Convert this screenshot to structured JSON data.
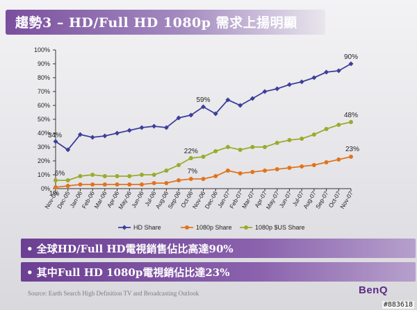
{
  "slide": {
    "title": "趨勢3 – HD/Full HD  1080p 需求上揚明顯",
    "bullets": [
      "• 全球HD/Full HD電視銷售佔比高達90%",
      "• 其中Full HD 1080p電視銷佔比達23%"
    ],
    "source": "Source: Earth Search High Definition TV and Broadcasting Outlook",
    "logo": "BenQ",
    "watermark": "#883618"
  },
  "chart_data": {
    "type": "line",
    "x": [
      "Nov-05",
      "Dec-05",
      "Jan-06",
      "Feb-06",
      "Mar-06",
      "Apr-06",
      "May-06",
      "Jun-06",
      "Jul-06",
      "Aug-06",
      "Sep-06",
      "Oct-06",
      "Nov-06",
      "Dec-06",
      "Jan-07",
      "Feb-07",
      "Mar-07",
      "Apr-07",
      "May-07",
      "Jun-07",
      "Jul-07",
      "Aug-07",
      "Sep-07",
      "Oct-07",
      "Nov-07"
    ],
    "x_tick_labels": [
      "Nov-05",
      "Dec-05",
      "Jan-06",
      "Feb-06",
      "Mar-06",
      "Apr-06",
      "May-06",
      "Jun-06",
      "Jul-06",
      "Aug-06",
      "Sep-06",
      "Oct-06",
      "Nov-06",
      "Dec-06",
      "Jan-07",
      "Feb-07",
      "Mar-07",
      "Apr-07",
      "May-07",
      "Jun-07",
      "Jul-07",
      "Aug-07",
      "Sep-07",
      "Oct-07",
      "Nov-07"
    ],
    "y_ticks": [
      "0%",
      "10%",
      "20%",
      "30%",
      "40%",
      "50%",
      "60%",
      "70%",
      "80%",
      "90%",
      "100%"
    ],
    "ylim": [
      0,
      100
    ],
    "grid": false,
    "legend_position": "bottom",
    "series": [
      {
        "name": "HD Share",
        "color": "#3c3f9a",
        "marker": "diamond",
        "values": [
          34,
          28,
          39,
          37,
          38,
          40,
          42,
          44,
          45,
          44,
          51,
          53,
          59,
          54,
          64,
          60,
          65,
          70,
          72,
          75,
          77,
          80,
          84,
          85,
          90
        ]
      },
      {
        "name": "1080p Share",
        "color": "#e0741c",
        "marker": "circle",
        "values": [
          1,
          2,
          3,
          3,
          3,
          3,
          3,
          3,
          4,
          4,
          6,
          7,
          7,
          9,
          13,
          11,
          12,
          13,
          14,
          15,
          16,
          17,
          19,
          21,
          23
        ]
      },
      {
        "name": "1080p $US Share",
        "color": "#9aab2c",
        "marker": "circle",
        "values": [
          6,
          6,
          9,
          10,
          9,
          9,
          9,
          10,
          10,
          13,
          17,
          22,
          23,
          27,
          30,
          28,
          30,
          30,
          33,
          35,
          36,
          39,
          43,
          46,
          48
        ]
      }
    ],
    "annotations": [
      {
        "text": "34%",
        "series": 0,
        "index": 0
      },
      {
        "text": "59%",
        "series": 0,
        "index": 12
      },
      {
        "text": "90%",
        "series": 0,
        "index": 24
      },
      {
        "text": "6%",
        "series": 2,
        "index": 0
      },
      {
        "text": "22%",
        "series": 2,
        "index": 11
      },
      {
        "text": "48%",
        "series": 2,
        "index": 24
      },
      {
        "text": "1%",
        "series": 1,
        "index": 0
      },
      {
        "text": "7%",
        "series": 1,
        "index": 11
      },
      {
        "text": "23%",
        "series": 1,
        "index": 24
      }
    ]
  }
}
